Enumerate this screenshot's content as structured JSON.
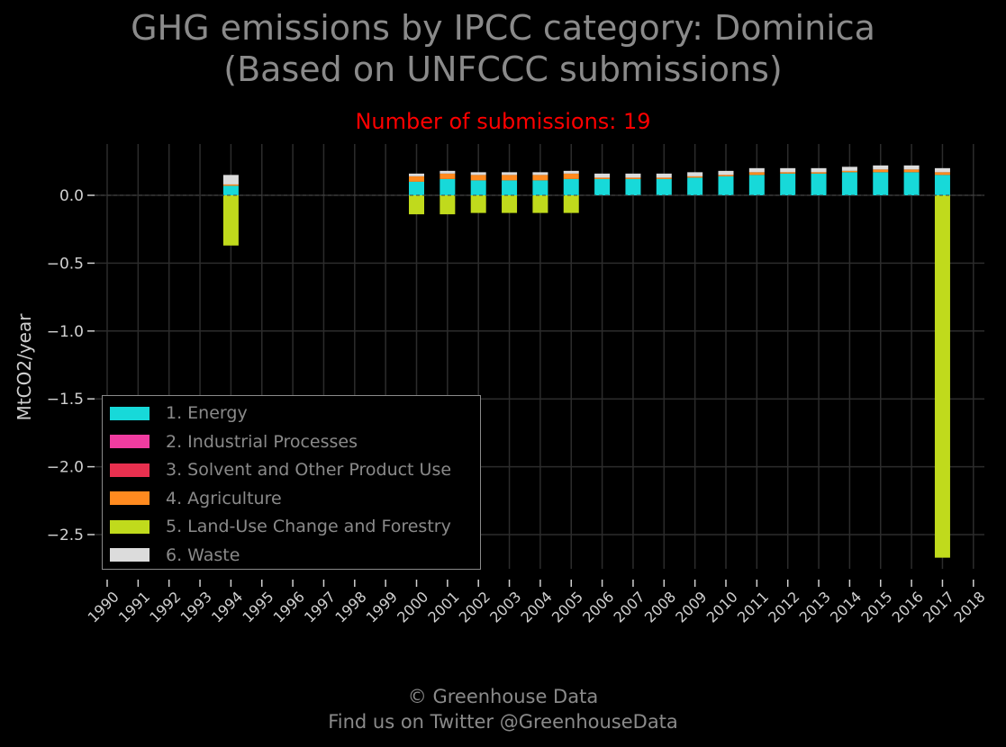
{
  "title_line1": "GHG emissions by IPCC category: Dominica",
  "title_line2": "(Based on UNFCCC submissions)",
  "subtitle": "Number of submissions: 19",
  "footer_line1": "© Greenhouse Data",
  "footer_line2": "Find us on Twitter @GreenhouseData",
  "chart_data": {
    "type": "bar",
    "stacked": true,
    "ylabel": "MtCO2/year",
    "ylim": [
      -2.75,
      0.35
    ],
    "yticks": [
      0.0,
      -0.5,
      -1.0,
      -1.5,
      -2.0,
      -2.5
    ],
    "ytick_labels": [
      "0.0",
      "−0.5",
      "−1.0",
      "−1.5",
      "−2.0",
      "−2.5"
    ],
    "grid": true,
    "legend_position": "lower-left",
    "categories": [
      "1990",
      "1991",
      "1992",
      "1993",
      "1994",
      "1995",
      "1996",
      "1997",
      "1998",
      "1999",
      "2000",
      "2001",
      "2002",
      "2003",
      "2004",
      "2005",
      "2006",
      "2007",
      "2008",
      "2009",
      "2010",
      "2011",
      "2012",
      "2013",
      "2014",
      "2015",
      "2016",
      "2017",
      "2018"
    ],
    "series": [
      {
        "name": "1. Energy",
        "color": "#17d9d9",
        "values": [
          null,
          null,
          null,
          null,
          0.07,
          null,
          null,
          null,
          null,
          null,
          0.1,
          0.12,
          0.11,
          0.11,
          0.11,
          0.12,
          0.12,
          0.12,
          0.12,
          0.13,
          0.14,
          0.15,
          0.16,
          0.16,
          0.17,
          0.17,
          0.17,
          0.15,
          null
        ]
      },
      {
        "name": "2. Industrial Processes",
        "color": "#f03ca0",
        "values": [
          null,
          null,
          null,
          null,
          0.0,
          null,
          null,
          null,
          null,
          null,
          0.0,
          0.0,
          0.0,
          0.0,
          0.0,
          0.0,
          0.0,
          0.0,
          0.0,
          0.0,
          0.0,
          0.0,
          0.0,
          0.0,
          0.0,
          0.0,
          0.0,
          0.0,
          null
        ]
      },
      {
        "name": "3. Solvent and Other Product Use",
        "color": "#e8304f",
        "values": [
          null,
          null,
          null,
          null,
          0.0,
          null,
          null,
          null,
          null,
          null,
          0.0,
          0.0,
          0.0,
          0.0,
          0.0,
          0.0,
          0.0,
          0.0,
          0.0,
          0.0,
          0.0,
          0.0,
          0.0,
          0.0,
          0.0,
          0.0,
          0.0,
          0.0,
          null
        ]
      },
      {
        "name": "4. Agriculture",
        "color": "#ff8a1f",
        "values": [
          null,
          null,
          null,
          null,
          0.01,
          null,
          null,
          null,
          null,
          null,
          0.04,
          0.04,
          0.04,
          0.04,
          0.04,
          0.04,
          0.01,
          0.01,
          0.01,
          0.01,
          0.01,
          0.02,
          0.01,
          0.01,
          0.01,
          0.02,
          0.02,
          0.02,
          null
        ]
      },
      {
        "name": "5. Land-Use Change and Forestry",
        "color": "#c0da1c",
        "values": [
          null,
          null,
          null,
          null,
          -0.37,
          null,
          null,
          null,
          null,
          null,
          -0.14,
          -0.14,
          -0.13,
          -0.13,
          -0.13,
          -0.13,
          null,
          null,
          null,
          null,
          null,
          null,
          null,
          null,
          null,
          null,
          null,
          -2.67,
          null
        ]
      },
      {
        "name": "6. Waste",
        "color": "#dcdcdc",
        "values": [
          null,
          null,
          null,
          null,
          0.07,
          null,
          null,
          null,
          null,
          null,
          0.02,
          0.02,
          0.02,
          0.02,
          0.02,
          0.02,
          0.03,
          0.03,
          0.03,
          0.03,
          0.03,
          0.03,
          0.03,
          0.03,
          0.03,
          0.03,
          0.03,
          0.03,
          null
        ]
      }
    ]
  }
}
